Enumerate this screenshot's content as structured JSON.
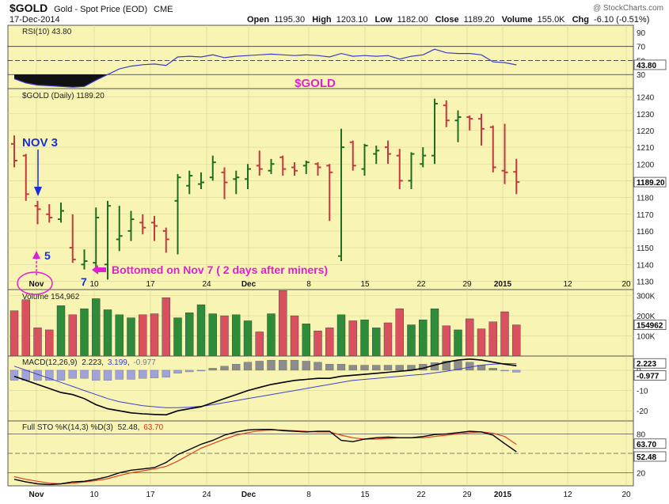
{
  "header": {
    "symbol": "$GOLD",
    "name": "Gold - Spot Price (EOD)",
    "exchange": "CME",
    "date": "17-Dec-2014",
    "watermark": "@ StockCharts.com",
    "open_label": "Open",
    "open": "1195.30",
    "high_label": "High",
    "high": "1203.10",
    "low_label": "Low",
    "low": "1182.00",
    "close_label": "Close",
    "close": "1189.20",
    "volume_label": "Volume",
    "volume": "155.0K",
    "chg_label": "Chg",
    "chg": "-6.10 (-0.51%)"
  },
  "colors": {
    "panel_bg": "#f8f5b4",
    "up": "#1f6e1f",
    "down": "#c4383f",
    "magenta": "#e020d0",
    "blue": "#1b2fd6",
    "rsi": "#3a3ad0",
    "macd_signal": "#4040d0",
    "macd_hist": "#8a8aa0",
    "sto_d": "#e04020"
  },
  "chart_data": {
    "type": "ohlc",
    "x_labels": [
      "Nov",
      "10",
      "17",
      "24",
      "Dec",
      "8",
      "15",
      "22",
      "29",
      "2015",
      "12",
      "20"
    ],
    "price": {
      "legend": "$GOLD (Daily) 1189.20",
      "title": "$GOLD",
      "y_ticks": [
        1130,
        1140,
        1150,
        1160,
        1170,
        1180,
        1190,
        1200,
        1210,
        1220,
        1230,
        1240
      ],
      "ylim": [
        1125,
        1245
      ],
      "last_value_label": "1189.20",
      "last_value": 1189.2,
      "bars": [
        {
          "o": 1212,
          "h": 1217,
          "l": 1198,
          "c": 1202
        },
        {
          "o": 1205,
          "h": 1206,
          "l": 1178,
          "c": 1182
        },
        {
          "o": 1175,
          "h": 1178,
          "l": 1164,
          "c": 1173
        },
        {
          "o": 1170,
          "h": 1176,
          "l": 1165,
          "c": 1168
        },
        {
          "o": 1167,
          "h": 1177,
          "l": 1165,
          "c": 1172
        },
        {
          "o": 1150,
          "h": 1170,
          "l": 1141,
          "c": 1143
        },
        {
          "o": 1140,
          "h": 1149,
          "l": 1137,
          "c": 1142
        },
        {
          "o": 1141,
          "h": 1174,
          "l": 1138,
          "c": 1168
        },
        {
          "o": 1140,
          "h": 1178,
          "l": 1131,
          "c": 1175
        },
        {
          "o": 1155,
          "h": 1175,
          "l": 1148,
          "c": 1157
        },
        {
          "o": 1160,
          "h": 1172,
          "l": 1154,
          "c": 1167
        },
        {
          "o": 1165,
          "h": 1170,
          "l": 1158,
          "c": 1162
        },
        {
          "o": 1165,
          "h": 1169,
          "l": 1154,
          "c": 1163
        },
        {
          "o": 1160,
          "h": 1162,
          "l": 1147,
          "c": 1155
        },
        {
          "o": 1178,
          "h": 1194,
          "l": 1146,
          "c": 1192
        },
        {
          "o": 1187,
          "h": 1196,
          "l": 1182,
          "c": 1193
        },
        {
          "o": 1188,
          "h": 1195,
          "l": 1185,
          "c": 1189
        },
        {
          "o": 1192,
          "h": 1205,
          "l": 1190,
          "c": 1201
        },
        {
          "o": 1195,
          "h": 1198,
          "l": 1179,
          "c": 1189
        },
        {
          "o": 1191,
          "h": 1196,
          "l": 1182,
          "c": 1192
        },
        {
          "o": 1191,
          "h": 1200,
          "l": 1185,
          "c": 1197
        },
        {
          "o": 1199,
          "h": 1208,
          "l": 1193,
          "c": 1197
        },
        {
          "o": 1196,
          "h": 1203,
          "l": 1194,
          "c": 1200
        },
        {
          "o": 1204,
          "h": 1205,
          "l": 1193,
          "c": 1197
        },
        {
          "o": 1198,
          "h": 1201,
          "l": 1193,
          "c": 1196
        },
        {
          "o": 1199,
          "h": 1202,
          "l": 1194,
          "c": 1201
        },
        {
          "o": 1200,
          "h": 1201,
          "l": 1193,
          "c": 1198
        },
        {
          "o": 1199,
          "h": 1200,
          "l": 1166,
          "c": 1195
        },
        {
          "o": 1145,
          "h": 1221,
          "l": 1142,
          "c": 1210
        },
        {
          "o": 1213,
          "h": 1214,
          "l": 1196,
          "c": 1199
        },
        {
          "o": 1197,
          "h": 1212,
          "l": 1193,
          "c": 1211
        },
        {
          "o": 1206,
          "h": 1211,
          "l": 1200,
          "c": 1208
        },
        {
          "o": 1210,
          "h": 1214,
          "l": 1200,
          "c": 1206
        },
        {
          "o": 1205,
          "h": 1209,
          "l": 1185,
          "c": 1190
        },
        {
          "o": 1190,
          "h": 1207,
          "l": 1185,
          "c": 1206
        },
        {
          "o": 1200,
          "h": 1210,
          "l": 1198,
          "c": 1205
        },
        {
          "o": 1205,
          "h": 1239,
          "l": 1200,
          "c": 1236
        },
        {
          "o": 1235,
          "h": 1238,
          "l": 1222,
          "c": 1226
        },
        {
          "o": 1226,
          "h": 1232,
          "l": 1213,
          "c": 1228
        },
        {
          "o": 1228,
          "h": 1229,
          "l": 1220,
          "c": 1227
        },
        {
          "o": 1227,
          "h": 1230,
          "l": 1211,
          "c": 1221
        },
        {
          "o": 1222,
          "h": 1223,
          "l": 1195,
          "c": 1198
        },
        {
          "o": 1196,
          "h": 1224,
          "l": 1188,
          "c": 1195
        },
        {
          "o": 1195.3,
          "h": 1203.1,
          "l": 1182,
          "c": 1189.2
        }
      ]
    },
    "rsi": {
      "legend": "RSI(10) 43.80",
      "y_ticks": [
        30,
        50,
        70,
        90
      ],
      "ylim": [
        10,
        100
      ],
      "ref_levels": [
        30,
        70
      ],
      "last_value": 43.8,
      "last_value_label": "43.80",
      "values": [
        24,
        18,
        15,
        14,
        13,
        12,
        13,
        22,
        30,
        38,
        42,
        44,
        45,
        43,
        55,
        56,
        55,
        58,
        54,
        56,
        57,
        58,
        59,
        58,
        57,
        58,
        57,
        55,
        60,
        56,
        57,
        56,
        57,
        52,
        56,
        58,
        66,
        61,
        60,
        60,
        58,
        48,
        47,
        43.8
      ]
    },
    "volume": {
      "legend": "Volume 154,962",
      "y_ticks_label": [
        "100K",
        "200K",
        "300K"
      ],
      "y_ticks": [
        100000,
        200000,
        300000
      ],
      "ylim": [
        0,
        330000
      ],
      "last_value_label": "154962",
      "last_value": 154962,
      "values": [
        225000,
        280000,
        140000,
        130000,
        250000,
        205000,
        235000,
        285000,
        230000,
        205000,
        190000,
        205000,
        210000,
        290000,
        190000,
        215000,
        255000,
        210000,
        200000,
        205000,
        175000,
        120000,
        210000,
        325000,
        200000,
        160000,
        125000,
        140000,
        205000,
        175000,
        180000,
        140000,
        165000,
        235000,
        155000,
        180000,
        235000,
        150000,
        130000,
        185000,
        135000,
        170000,
        220000,
        154962
      ]
    },
    "macd": {
      "legend_prefix": "MACD(12,26,9)",
      "legend_macd": "2.223",
      "legend_signal": "3.199",
      "legend_hist": "-0.977",
      "y_ticks": [
        -20,
        -10,
        0
      ],
      "ylim": [
        -25,
        7
      ],
      "last_value_labels": [
        "2.223",
        "-0.977"
      ],
      "last_values": [
        2.223,
        -0.977
      ],
      "macd": [
        -3,
        -5,
        -7,
        -9,
        -11,
        -12,
        -14,
        -17,
        -19,
        -20,
        -21,
        -21.5,
        -21.8,
        -22,
        -20,
        -19,
        -18,
        -16,
        -14,
        -12,
        -10,
        -8.5,
        -7,
        -6,
        -5,
        -4.5,
        -4,
        -4,
        -3,
        -2.5,
        -2,
        -1.5,
        -1,
        -0.5,
        0,
        1,
        2.5,
        4,
        5,
        5.5,
        5,
        4,
        3,
        2.223
      ],
      "signal": [
        2,
        0,
        -2,
        -4,
        -6,
        -8,
        -10,
        -12,
        -14,
        -15.5,
        -16.5,
        -17.5,
        -18,
        -18.5,
        -18.5,
        -18.2,
        -17.8,
        -17,
        -16,
        -15,
        -14,
        -13,
        -12,
        -11,
        -10,
        -9,
        -8,
        -7,
        -6,
        -5,
        -4.5,
        -4,
        -3.5,
        -3,
        -2.5,
        -2,
        -1.3,
        -0.5,
        0.5,
        1.5,
        2.5,
        3,
        3.3,
        3.199
      ],
      "hist": [
        -5,
        -5,
        -5,
        -5,
        -5,
        -4,
        -4,
        -5,
        -5,
        -4.5,
        -4.5,
        -4,
        -3.8,
        -3.5,
        -1.5,
        -0.8,
        -0.2,
        1,
        2,
        3,
        4,
        4.5,
        5,
        5,
        5,
        4.5,
        4,
        3,
        3,
        2.5,
        2.5,
        2.5,
        2.5,
        2.5,
        2.5,
        3,
        3.8,
        4.5,
        4.5,
        4,
        2.5,
        1,
        -0.3,
        -0.977
      ]
    },
    "sto": {
      "legend_prefix": "Full STO %K(14,3) %D(3)",
      "legend_k": "52.48",
      "legend_d": "63.70",
      "y_ticks": [
        20,
        50,
        80
      ],
      "ylim": [
        0,
        100
      ],
      "ref_levels": [
        20,
        50,
        80
      ],
      "last_value_labels": [
        "63.70",
        "52.48"
      ],
      "last_values": [
        63.7,
        52.48
      ],
      "k": [
        10,
        6,
        3,
        2,
        3,
        6,
        7,
        10,
        14,
        20,
        24,
        26,
        28,
        36,
        48,
        56,
        64,
        70,
        78,
        83,
        86,
        87,
        87,
        85,
        84,
        83,
        84,
        84,
        70,
        68,
        72,
        74,
        75,
        74,
        74,
        76,
        79,
        80,
        82,
        84,
        83,
        78,
        65,
        52.48
      ],
      "d": [
        14,
        10,
        7,
        4,
        3,
        4,
        6,
        8,
        11,
        16,
        20,
        23,
        26,
        30,
        38,
        48,
        58,
        65,
        72,
        78,
        82,
        85,
        86,
        86,
        85,
        84,
        83,
        83,
        78,
        74,
        72,
        72,
        73,
        74,
        74,
        74,
        76,
        78,
        80,
        82,
        83,
        81,
        76,
        63.7
      ]
    }
  },
  "annotations": {
    "nov3": "NOV 3",
    "five": "5",
    "seven": "7",
    "bottomed": "Bottomed on Nov 7  ( 2 days after miners)"
  }
}
